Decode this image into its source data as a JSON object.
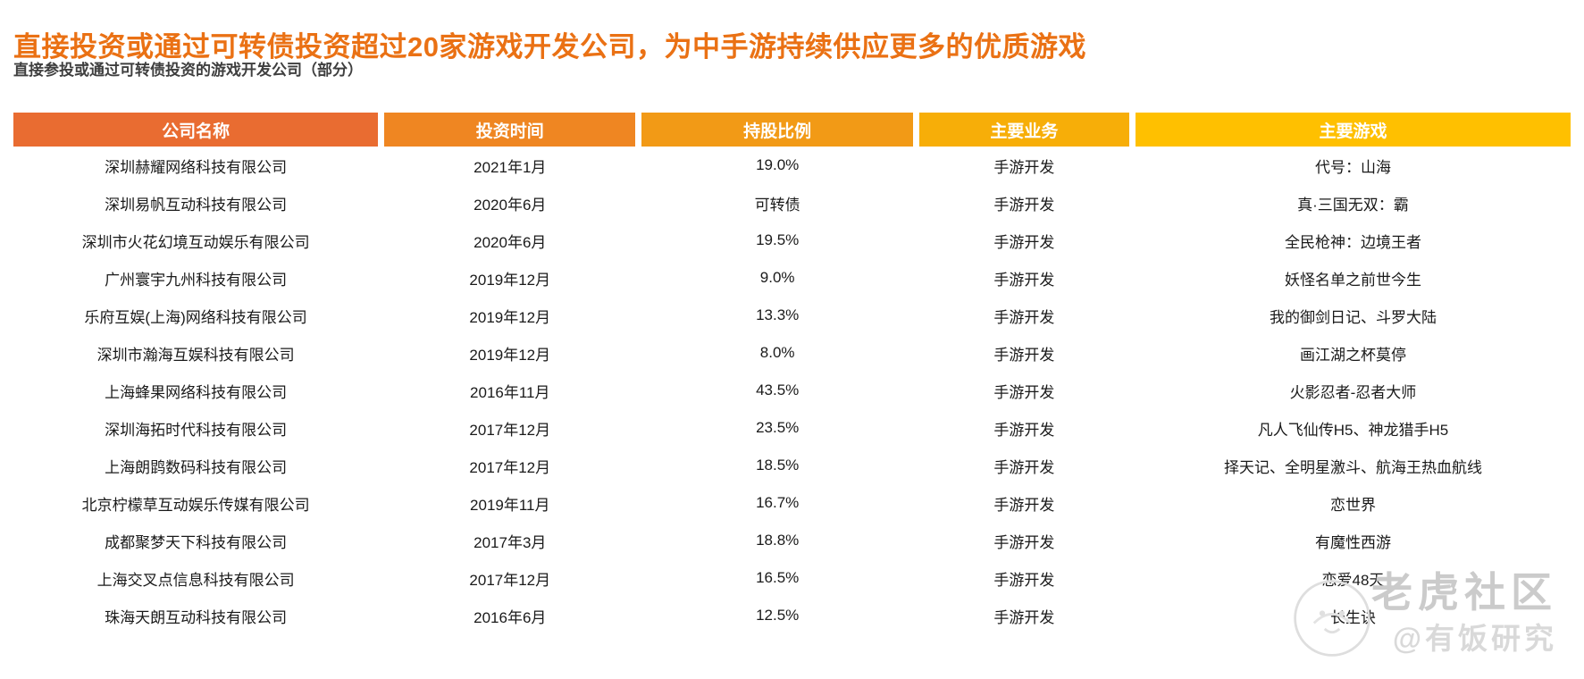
{
  "page": {
    "title": "直接投资或通过可转债投资超过20家游戏开发公司，为中手游持续供应更多的优质游戏",
    "subtitle": "直接参投或通过可转债投资的游戏开发公司（部分）"
  },
  "table": {
    "columns": [
      {
        "label": "公司名称",
        "color": "#E96C31"
      },
      {
        "label": "投资时间",
        "color": "#EF8622"
      },
      {
        "label": "持股比例",
        "color": "#F29A16"
      },
      {
        "label": "主要业务",
        "color": "#F7AE08"
      },
      {
        "label": "主要游戏",
        "color": "#FFC000"
      }
    ],
    "rows": [
      [
        "深圳赫耀网络科技有限公司",
        "2021年1月",
        "19.0%",
        "手游开发",
        "代号：山海"
      ],
      [
        "深圳易帆互动科技有限公司",
        "2020年6月",
        "可转债",
        "手游开发",
        "真·三国无双：霸"
      ],
      [
        "深圳市火花幻境互动娱乐有限公司",
        "2020年6月",
        "19.5%",
        "手游开发",
        "全民枪神：边境王者"
      ],
      [
        "广州寰宇九州科技有限公司",
        "2019年12月",
        "9.0%",
        "手游开发",
        "妖怪名单之前世今生"
      ],
      [
        "乐府互娱(上海)网络科技有限公司",
        "2019年12月",
        "13.3%",
        "手游开发",
        "我的御剑日记、斗罗大陆"
      ],
      [
        "深圳市瀚海互娱科技有限公司",
        "2019年12月",
        "8.0%",
        "手游开发",
        "画江湖之杯莫停"
      ],
      [
        "上海蜂果网络科技有限公司",
        "2016年11月",
        "43.5%",
        "手游开发",
        "火影忍者-忍者大师"
      ],
      [
        "深圳海拓时代科技有限公司",
        "2017年12月",
        "23.5%",
        "手游开发",
        "凡人飞仙传H5、神龙猎手H5"
      ],
      [
        "上海朗鹍数码科技有限公司",
        "2017年12月",
        "18.5%",
        "手游开发",
        "择天记、全明星激斗、航海王热血航线"
      ],
      [
        "北京柠檬草互动娱乐传媒有限公司",
        "2019年11月",
        "16.7%",
        "手游开发",
        "恋世界"
      ],
      [
        "成都聚梦天下科技有限公司",
        "2017年3月",
        "18.8%",
        "手游开发",
        "有魔性西游"
      ],
      [
        "上海交叉点信息科技有限公司",
        "2017年12月",
        "16.5%",
        "手游开发",
        "恋爱48天"
      ],
      [
        "珠海天朗互动科技有限公司",
        "2016年6月",
        "12.5%",
        "手游开发",
        "长生诀"
      ]
    ]
  },
  "watermark": {
    "brand": "老虎社区",
    "handle": "@有饭研究",
    "logo": "tiger-circle-logo"
  },
  "colors": {
    "title": "#EA7114",
    "subtitle": "#3F3F3F",
    "header_text": "#FFFFFF",
    "body_text": "#1A1A1A",
    "watermark": "#CBCBCB",
    "watermark_light": "#D9D9D9"
  }
}
